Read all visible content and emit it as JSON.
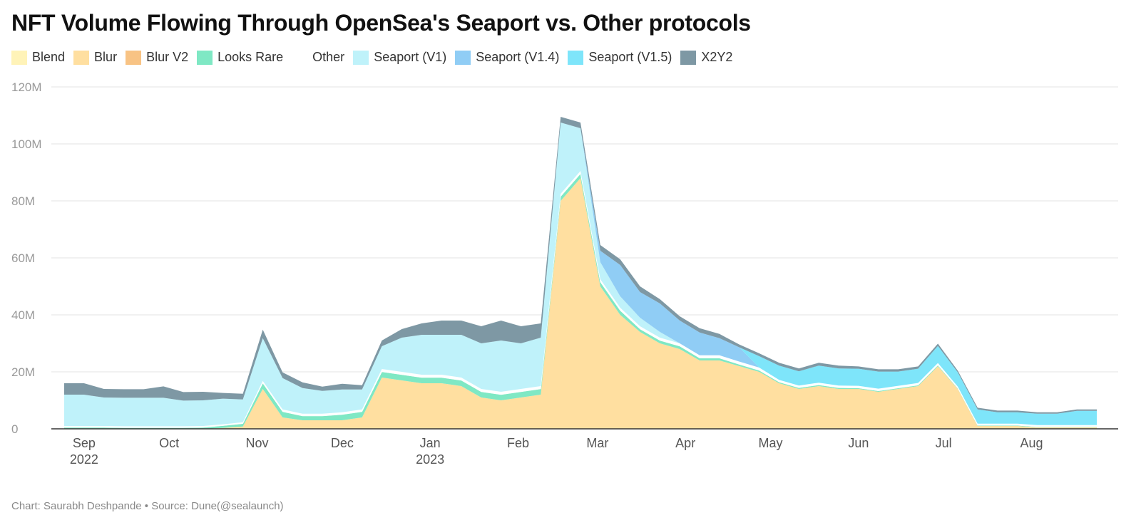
{
  "header": {
    "title": "NFT Volume Flowing Through OpenSea's Seaport vs. Other protocols"
  },
  "footer": {
    "source": "Chart: Saurabh Deshpande • Source: Dune(@sealaunch)"
  },
  "chart_data": {
    "type": "area",
    "stacked": true,
    "title": "NFT Volume Flowing Through OpenSea's Seaport vs. Other protocols",
    "xlabel": "",
    "ylabel": "",
    "ylim": [
      0,
      120000000
    ],
    "xlim": [
      "2022-08-25",
      "2023-08-24"
    ],
    "grid": true,
    "legend_position": "top-left",
    "y_ticks": [
      {
        "value": 0,
        "label": "0"
      },
      {
        "value": 20000000,
        "label": "20M"
      },
      {
        "value": 40000000,
        "label": "40M"
      },
      {
        "value": 60000000,
        "label": "60M"
      },
      {
        "value": 80000000,
        "label": "80M"
      },
      {
        "value": 100000000,
        "label": "100M"
      },
      {
        "value": 120000000,
        "label": "120M"
      }
    ],
    "x_ticks": [
      {
        "date": "2022-09-01",
        "label": "Sep",
        "sublabel": "2022"
      },
      {
        "date": "2022-10-01",
        "label": "Oct",
        "sublabel": ""
      },
      {
        "date": "2022-11-01",
        "label": "Nov",
        "sublabel": ""
      },
      {
        "date": "2022-12-01",
        "label": "Dec",
        "sublabel": ""
      },
      {
        "date": "2023-01-01",
        "label": "Jan",
        "sublabel": "2023"
      },
      {
        "date": "2023-02-01",
        "label": "Feb",
        "sublabel": ""
      },
      {
        "date": "2023-03-01",
        "label": "Mar",
        "sublabel": ""
      },
      {
        "date": "2023-04-01",
        "label": "Apr",
        "sublabel": ""
      },
      {
        "date": "2023-05-01",
        "label": "May",
        "sublabel": ""
      },
      {
        "date": "2023-06-01",
        "label": "Jun",
        "sublabel": ""
      },
      {
        "date": "2023-07-01",
        "label": "Jul",
        "sublabel": ""
      },
      {
        "date": "2023-08-01",
        "label": "Aug",
        "sublabel": ""
      }
    ],
    "x": [
      "2022-08-25",
      "2022-09-01",
      "2022-09-08",
      "2022-09-15",
      "2022-09-22",
      "2022-09-29",
      "2022-10-06",
      "2022-10-13",
      "2022-10-20",
      "2022-10-27",
      "2022-11-03",
      "2022-11-10",
      "2022-11-17",
      "2022-11-24",
      "2022-12-01",
      "2022-12-08",
      "2022-12-15",
      "2022-12-22",
      "2022-12-29",
      "2023-01-05",
      "2023-01-12",
      "2023-01-19",
      "2023-01-26",
      "2023-02-02",
      "2023-02-09",
      "2023-02-16",
      "2023-02-23",
      "2023-03-02",
      "2023-03-09",
      "2023-03-16",
      "2023-03-23",
      "2023-03-30",
      "2023-04-06",
      "2023-04-13",
      "2023-04-20",
      "2023-04-27",
      "2023-05-04",
      "2023-05-11",
      "2023-05-18",
      "2023-05-25",
      "2023-06-01",
      "2023-06-08",
      "2023-06-15",
      "2023-06-22",
      "2023-06-29",
      "2023-07-06",
      "2023-07-13",
      "2023-07-20",
      "2023-07-27",
      "2023-08-03",
      "2023-08-10",
      "2023-08-17",
      "2023-08-24"
    ],
    "series": [
      {
        "name": "Blend",
        "color": "#FFF3B8",
        "values": [
          0,
          0,
          0,
          0,
          0,
          0,
          0,
          0,
          0,
          0,
          0,
          0,
          0,
          0,
          0,
          0,
          0,
          0,
          0,
          0,
          0,
          0,
          0,
          0,
          0,
          0,
          0,
          0,
          0,
          0,
          0,
          0,
          0,
          0,
          0,
          0,
          0,
          0,
          0,
          0,
          0,
          0,
          0,
          0,
          0,
          0,
          0,
          0,
          0,
          0,
          0,
          0,
          0
        ]
      },
      {
        "name": "Blur",
        "color": "#FFDFA0",
        "values": [
          0,
          0,
          0,
          0,
          0,
          0,
          0,
          0,
          0.3,
          0.8,
          14,
          4,
          3,
          3,
          3,
          4,
          18,
          17,
          16,
          16,
          15,
          11,
          10,
          11,
          12,
          80,
          88,
          50,
          40,
          34,
          30,
          28,
          24,
          24,
          22,
          20,
          16,
          14,
          15,
          14,
          14,
          13,
          14,
          15,
          22,
          14,
          1,
          1,
          1,
          0.5,
          0.5,
          0.5,
          0.5
        ]
      },
      {
        "name": "Blur V2",
        "color": "#F8C384",
        "values": [
          0,
          0,
          0,
          0,
          0,
          0,
          0,
          0,
          0,
          0,
          0,
          0,
          0,
          0,
          0,
          0,
          0,
          0,
          0,
          0,
          0,
          0,
          0,
          0,
          0,
          0,
          0,
          0,
          0,
          0,
          0,
          0,
          0,
          0,
          0,
          0,
          0,
          0,
          0,
          0,
          0,
          0,
          0,
          0,
          0,
          0,
          0,
          0,
          0,
          0,
          0,
          0,
          0
        ]
      },
      {
        "name": "Looks Rare",
        "color": "#7FE8C4",
        "values": [
          0.5,
          0.5,
          0.5,
          0.4,
          0.4,
          0.4,
          0.4,
          0.5,
          0.8,
          1,
          2,
          2,
          1.5,
          1.5,
          2,
          2,
          2,
          2,
          2,
          2,
          2,
          2,
          2,
          2,
          2,
          1.5,
          1.5,
          1.5,
          1.5,
          1,
          1,
          1,
          0.8,
          0.8,
          0.6,
          0.5,
          0.4,
          0.4,
          0.4,
          0.4,
          0.3,
          0.3,
          0.3,
          0.3,
          0.3,
          0.2,
          0.2,
          0.2,
          0.2,
          0.2,
          0.2,
          0.2,
          0.2
        ]
      },
      {
        "name": "Other",
        "color": "#ffffff",
        "values": [
          0.5,
          0.5,
          0.5,
          0.5,
          0.5,
          0.5,
          0.5,
          0.5,
          0.5,
          0.5,
          0.8,
          0.8,
          0.8,
          0.8,
          0.8,
          0.8,
          1,
          1,
          1,
          1,
          1,
          1,
          1,
          1,
          1,
          1,
          1,
          1,
          1,
          1,
          1,
          1,
          1,
          1,
          1,
          1,
          0.8,
          0.8,
          0.8,
          0.8,
          0.8,
          0.8,
          0.8,
          0.8,
          0.8,
          0.6,
          0.6,
          0.6,
          0.6,
          0.6,
          0.6,
          0.6,
          0.6
        ]
      },
      {
        "name": "Seaport (V1)",
        "color": "#BFF2FA",
        "values": [
          11,
          11,
          10,
          10,
          10,
          10,
          9,
          9,
          9,
          8,
          15,
          11,
          9,
          8,
          8,
          7,
          8,
          12,
          14,
          14,
          15,
          16,
          18,
          16,
          17,
          25,
          15,
          6,
          4,
          3,
          2,
          0,
          0,
          0,
          0,
          0,
          0,
          0,
          0,
          0,
          0,
          0,
          0,
          0,
          0,
          0,
          0,
          0,
          0,
          0,
          0,
          0,
          0
        ]
      },
      {
        "name": "Seaport (V1.4)",
        "color": "#90CDF5",
        "values": [
          0,
          0,
          0,
          0,
          0,
          0,
          0,
          0,
          0,
          0,
          0,
          0,
          0,
          0,
          0,
          0,
          0,
          0,
          0,
          0,
          0,
          0,
          0,
          0,
          0,
          0,
          0,
          4,
          11,
          9,
          10,
          8,
          8,
          6,
          5,
          0,
          0,
          0,
          0,
          0,
          0,
          0,
          0,
          0,
          0,
          0,
          0,
          0,
          0,
          0,
          0,
          0,
          0
        ]
      },
      {
        "name": "Seaport (V1.5)",
        "color": "#7EE5FA",
        "values": [
          0,
          0,
          0,
          0,
          0,
          0,
          0,
          0,
          0,
          0,
          0,
          0,
          0,
          0,
          0,
          0,
          0,
          0,
          0,
          0,
          0,
          0,
          0,
          0,
          0,
          0,
          0,
          0,
          0,
          0,
          0,
          0,
          0,
          0,
          0,
          4,
          5,
          5,
          6,
          6,
          6,
          6,
          5,
          5,
          6,
          5,
          5,
          4,
          4,
          4,
          4,
          5,
          5
        ]
      },
      {
        "name": "X2Y2",
        "color": "#7E98A4",
        "values": [
          4,
          4,
          3,
          3,
          3,
          4,
          3,
          3,
          2,
          2,
          3,
          2,
          2,
          1.5,
          2,
          1.5,
          2,
          3,
          4,
          5,
          5,
          6,
          7,
          6,
          5,
          2,
          2,
          2,
          2,
          2,
          1.5,
          1.5,
          1.5,
          1.5,
          1,
          1,
          1,
          1,
          1,
          1,
          0.8,
          0.8,
          0.8,
          0.8,
          0.8,
          0.6,
          0.6,
          0.6,
          0.6,
          0.5,
          0.5,
          0.5,
          0.5
        ]
      }
    ]
  }
}
